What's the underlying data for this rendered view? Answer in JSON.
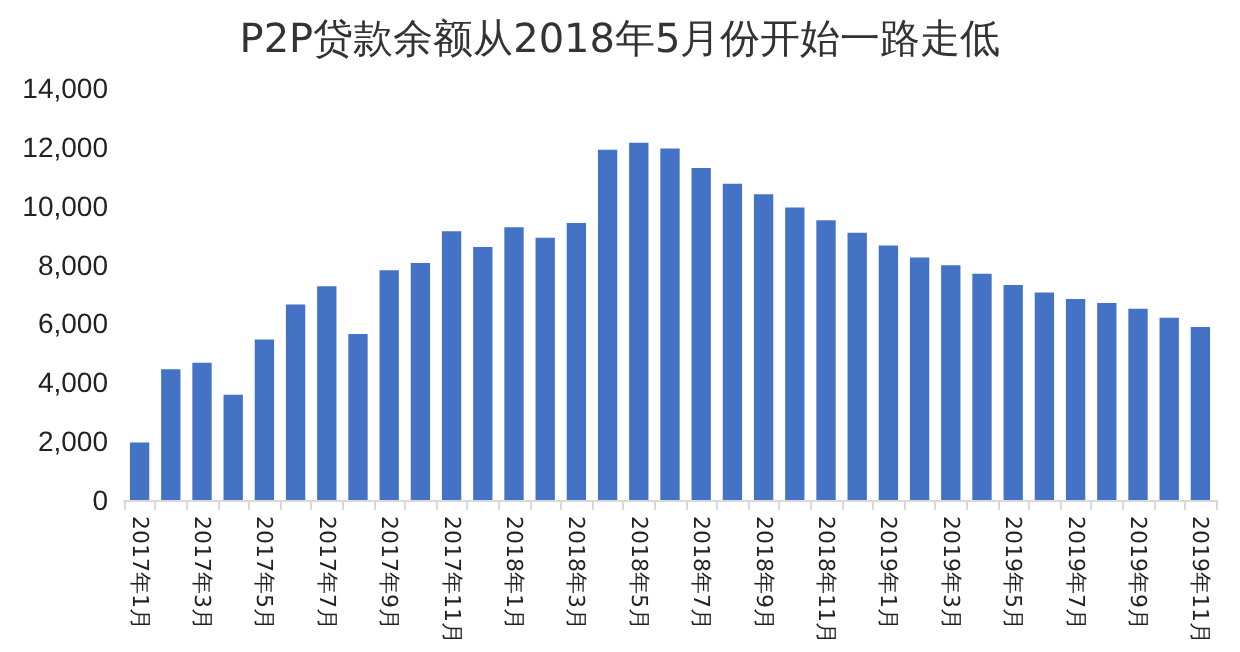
{
  "chart_data": {
    "type": "bar",
    "title": "P2P贷款余额从2018年5月份开始一路走低",
    "categories": [
      "2017年1月",
      null,
      "2017年3月",
      null,
      "2017年5月",
      null,
      "2017年7月",
      null,
      "2017年9月",
      null,
      "2017年11月",
      null,
      "2018年1月",
      null,
      "2018年3月",
      null,
      "2018年5月",
      null,
      "2018年7月",
      null,
      "2018年9月",
      null,
      "2018年11月",
      null,
      "2019年1月",
      null,
      "2019年3月",
      null,
      "2019年5月",
      null,
      "2019年7月",
      null,
      "2019年9月",
      null,
      "2019年11月"
    ],
    "values": [
      1950,
      4440,
      4660,
      3580,
      5450,
      6640,
      7260,
      5640,
      7810,
      8050,
      9130,
      8600,
      9270,
      8910,
      9410,
      11900,
      12140,
      11940,
      11280,
      10750,
      10390,
      9940,
      9510,
      9080,
      8650,
      8240,
      7980,
      7690,
      7310,
      7050,
      6830,
      6690,
      6500,
      6190,
      5880
    ],
    "color": "#4472c4",
    "ylim": [
      0,
      14000
    ],
    "yticks": [
      0,
      {
        "value": 2000,
        "label": "2,000"
      },
      {
        "value": 4000,
        "label": "4,000"
      },
      {
        "value": 6000,
        "label": "6,000"
      },
      {
        "value": 8000,
        "label": "8,000"
      },
      {
        "value": 10000,
        "label": "10,000"
      },
      {
        "value": 12000,
        "label": "12,000"
      },
      {
        "value": 14000,
        "label": "14,000"
      }
    ],
    "grid": false
  }
}
